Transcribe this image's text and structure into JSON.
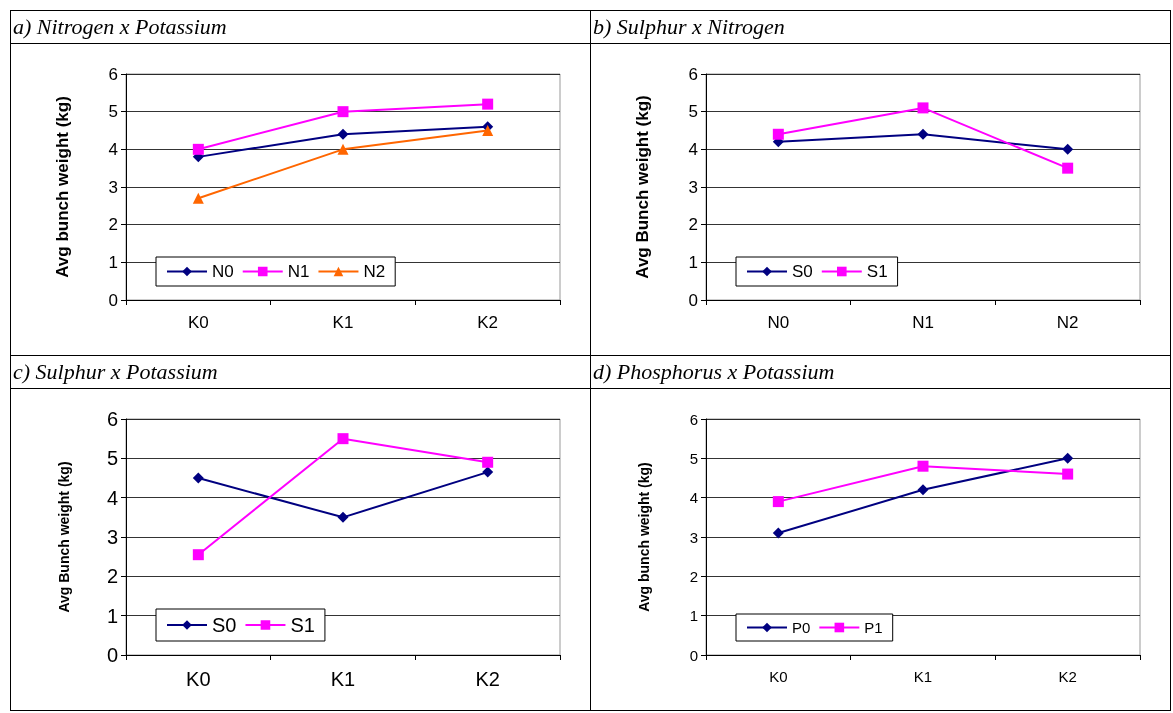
{
  "chart_data": [
    {
      "type": "line",
      "title": "a) Nitrogen x Potassium",
      "ylabel": "Avg bunch weight (kg)",
      "categories": [
        "K0",
        "K1",
        "K2"
      ],
      "ylim": [
        0,
        6
      ],
      "yticks": [
        0,
        1,
        2,
        3,
        4,
        5,
        6
      ],
      "grid": "y",
      "legend": "bottom left",
      "series": [
        {
          "name": "N0",
          "color": "#000080",
          "marker": "diamond",
          "values": [
            3.8,
            4.4,
            4.6
          ]
        },
        {
          "name": "N1",
          "color": "#ff00ff",
          "marker": "square",
          "values": [
            4.0,
            5.0,
            5.2
          ]
        },
        {
          "name": "N2",
          "color": "#ff6600",
          "marker": "triangle",
          "values": [
            2.7,
            4.0,
            4.5
          ]
        }
      ]
    },
    {
      "type": "line",
      "title": "b) Sulphur x Nitrogen",
      "ylabel": "Avg Bunch weight (kg)",
      "categories": [
        "N0",
        "N1",
        "N2"
      ],
      "ylim": [
        0,
        6
      ],
      "yticks": [
        0,
        1,
        2,
        3,
        4,
        5,
        6
      ],
      "grid": "y",
      "legend": "bottom left",
      "series": [
        {
          "name": "S0",
          "color": "#000080",
          "marker": "diamond",
          "values": [
            4.2,
            4.4,
            4.0
          ]
        },
        {
          "name": "S1",
          "color": "#ff00ff",
          "marker": "square",
          "values": [
            4.4,
            5.1,
            3.5
          ]
        }
      ]
    },
    {
      "type": "line",
      "title": "c) Sulphur x Potassium",
      "ylabel": "Avg Bunch weight (kg)",
      "categories": [
        "K0",
        "K1",
        "K2"
      ],
      "ylim": [
        0,
        6
      ],
      "yticks": [
        0,
        1,
        2,
        3,
        4,
        5,
        6
      ],
      "grid": "y",
      "legend": "bottom left",
      "series": [
        {
          "name": "S0",
          "color": "#000080",
          "marker": "diamond",
          "values": [
            4.5,
            3.5,
            4.65
          ]
        },
        {
          "name": "S1",
          "color": "#ff00ff",
          "marker": "square",
          "values": [
            2.55,
            5.5,
            4.9
          ]
        }
      ]
    },
    {
      "type": "line",
      "title": "d) Phosphorus x Potassium",
      "ylabel": "Avg bunch weight (kg)",
      "categories": [
        "K0",
        "K1",
        "K2"
      ],
      "ylim": [
        0,
        6
      ],
      "yticks": [
        0,
        1,
        2,
        3,
        4,
        5,
        6
      ],
      "grid": "y",
      "legend": "bottom left",
      "series": [
        {
          "name": "P0",
          "color": "#000080",
          "marker": "diamond",
          "values": [
            3.1,
            4.2,
            5.0
          ]
        },
        {
          "name": "P1",
          "color": "#ff00ff",
          "marker": "square",
          "values": [
            3.9,
            4.8,
            4.6
          ]
        }
      ]
    }
  ]
}
